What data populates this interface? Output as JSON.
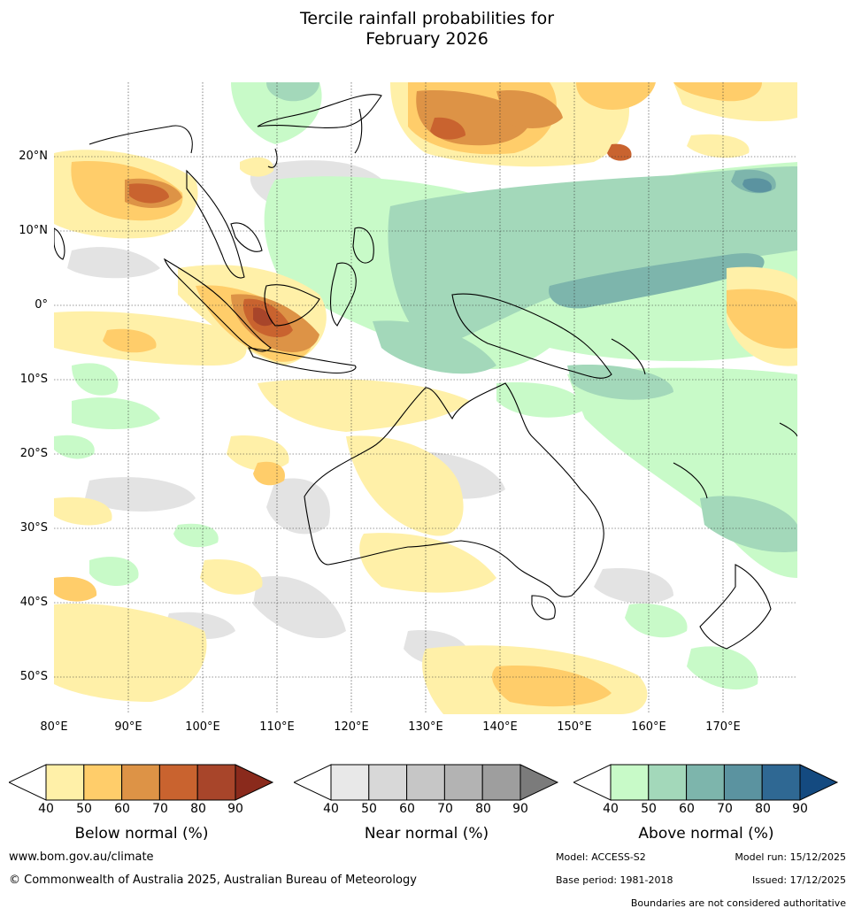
{
  "title": {
    "line1": "Tercile rainfall probabilities for",
    "line2": "February 2026"
  },
  "map": {
    "lon_ticks": [
      "80°E",
      "90°E",
      "100°E",
      "110°E",
      "120°E",
      "130°E",
      "140°E",
      "150°E",
      "160°E",
      "170°E"
    ],
    "lat_ticks": [
      "20°N",
      "10°N",
      "0°",
      "10°S",
      "20°S",
      "30°S",
      "40°S",
      "50°S"
    ]
  },
  "legend": {
    "tick_labels": [
      "40",
      "50",
      "60",
      "70",
      "80",
      "90"
    ],
    "below": {
      "title": "Below normal (%)",
      "colors": [
        "#fff0a8",
        "#ffcd6a",
        "#dd9346",
        "#c9632f",
        "#a8452a",
        "#8a2a1c"
      ]
    },
    "near": {
      "title": "Near normal (%)",
      "colors": [
        "#e8e8e8",
        "#d8d8d8",
        "#c6c6c6",
        "#b3b3b3",
        "#9e9e9e",
        "#7b7b7b"
      ]
    },
    "above": {
      "title": "Above normal (%)",
      "colors": [
        "#c8fac8",
        "#a3d8ba",
        "#7db5ac",
        "#5b93a0",
        "#2f6893",
        "#144a80"
      ]
    }
  },
  "footer": {
    "website": "www.bom.gov.au/climate",
    "copyright": "© Commonwealth of Australia 2025, Australian Bureau of Meteorology",
    "model": "Model: ACCESS-S2",
    "model_run": "Model run: 15/12/2025",
    "base_period": "Base period: 1981-2018",
    "issued": "Issued: 17/12/2025",
    "disclaimer": "Boundaries are not considered authoritative"
  }
}
